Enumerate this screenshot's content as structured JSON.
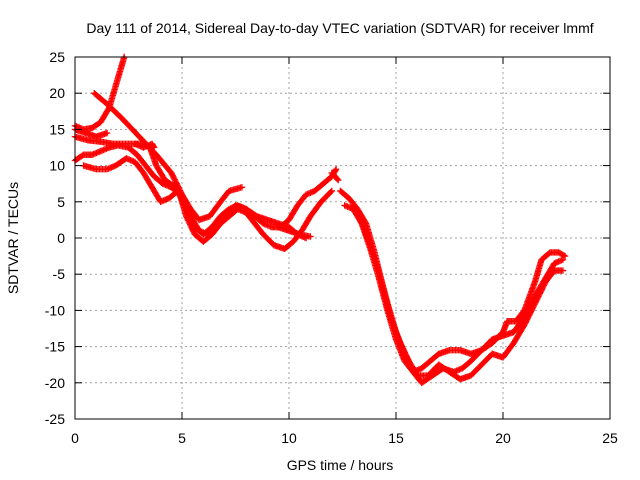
{
  "chart_data": {
    "type": "scatter",
    "title": "Day 111 of 2014, Sidereal Day-to-day VTEC variation (SDTVAR) for receiver lmmf",
    "xlabel": "GPS time / hours",
    "ylabel": "SDTVAR / TECUs",
    "xlim": [
      0,
      25
    ],
    "ylim": [
      -25,
      25
    ],
    "xticks": [
      "0",
      "5",
      "10",
      "15",
      "20",
      "25"
    ],
    "yticks": [
      "-25",
      "-20",
      "-15",
      "-10",
      "-5",
      "0",
      "5",
      "10",
      "15",
      "20",
      "25"
    ],
    "grid": true,
    "legend": "none",
    "marker": "plus",
    "color": "#ff0000",
    "series": [
      {
        "points": [
          [
            0.0,
            15.5
          ],
          [
            0.4,
            15.0
          ],
          [
            0.8,
            15.2
          ],
          [
            1.2,
            16.0
          ],
          [
            1.6,
            18.0
          ],
          [
            2.0,
            22.0
          ],
          [
            2.3,
            25.0
          ]
        ]
      },
      {
        "points": [
          [
            0.9,
            20.0
          ],
          [
            1.5,
            18.5
          ],
          [
            2.2,
            16.5
          ],
          [
            3.0,
            14.0
          ],
          [
            3.8,
            11.5
          ],
          [
            4.5,
            9.0
          ],
          [
            5.0,
            6.0
          ],
          [
            5.4,
            4.0
          ],
          [
            5.8,
            2.5
          ],
          [
            6.3,
            3.0
          ],
          [
            6.8,
            5.0
          ],
          [
            7.2,
            6.5
          ],
          [
            7.8,
            7.0
          ]
        ]
      },
      {
        "points": [
          [
            0.0,
            14.0
          ],
          [
            0.6,
            13.5
          ],
          [
            1.2,
            13.3
          ],
          [
            1.8,
            13.0
          ],
          [
            2.5,
            13.0
          ],
          [
            3.2,
            13.0
          ],
          [
            3.5,
            12.5
          ],
          [
            3.8,
            10.0
          ],
          [
            4.2,
            8.0
          ],
          [
            4.7,
            7.0
          ],
          [
            5.1,
            5.0
          ],
          [
            5.4,
            3.0
          ],
          [
            5.8,
            1.0
          ],
          [
            6.2,
            0.5
          ],
          [
            6.6,
            1.5
          ],
          [
            7.0,
            3.0
          ],
          [
            7.5,
            4.5
          ],
          [
            8.0,
            4.0
          ],
          [
            8.5,
            3.0
          ],
          [
            9.0,
            2.5
          ],
          [
            9.5,
            2.0
          ],
          [
            10.0,
            1.5
          ],
          [
            10.4,
            0.5
          ],
          [
            10.8,
            0.0
          ]
        ]
      },
      {
        "points": [
          [
            0.0,
            10.7
          ],
          [
            0.4,
            11.5
          ],
          [
            0.8,
            11.5
          ],
          [
            1.2,
            12.0
          ],
          [
            1.6,
            12.5
          ],
          [
            2.0,
            12.8
          ],
          [
            2.5,
            12.5
          ],
          [
            2.9,
            11.5
          ],
          [
            3.3,
            10.0
          ],
          [
            3.7,
            8.5
          ],
          [
            4.1,
            7.5
          ],
          [
            4.5,
            7.0
          ],
          [
            4.9,
            6.0
          ],
          [
            5.2,
            3.0
          ],
          [
            5.6,
            0.5
          ],
          [
            6.0,
            -0.5
          ],
          [
            6.4,
            0.5
          ],
          [
            6.8,
            2.0
          ],
          [
            7.2,
            3.0
          ],
          [
            7.6,
            4.0
          ],
          [
            8.0,
            3.5
          ],
          [
            8.4,
            2.0
          ],
          [
            8.8,
            0.5
          ],
          [
            9.3,
            -1.0
          ],
          [
            9.8,
            -1.5
          ],
          [
            10.2,
            -0.5
          ],
          [
            10.6,
            1.0
          ],
          [
            11.0,
            3.0
          ],
          [
            11.5,
            5.0
          ],
          [
            12.0,
            6.5
          ]
        ]
      },
      {
        "points": [
          [
            0.4,
            10.0
          ],
          [
            1.0,
            9.5
          ],
          [
            1.5,
            9.5
          ],
          [
            1.9,
            10.0
          ],
          [
            2.4,
            11.0
          ],
          [
            2.8,
            10.5
          ],
          [
            3.2,
            9.0
          ],
          [
            3.6,
            7.0
          ],
          [
            4.0,
            5.0
          ],
          [
            4.4,
            5.5
          ],
          [
            4.8,
            6.5
          ],
          [
            5.2,
            4.0
          ],
          [
            5.6,
            1.5
          ],
          [
            6.0,
            0.5
          ],
          [
            6.4,
            1.5
          ],
          [
            6.8,
            3.0
          ],
          [
            7.2,
            4.0
          ],
          [
            7.6,
            4.5
          ],
          [
            8.0,
            4.0
          ],
          [
            8.4,
            3.0
          ],
          [
            8.8,
            2.0
          ],
          [
            9.2,
            1.5
          ],
          [
            9.6,
            1.5
          ],
          [
            10.0,
            2.5
          ],
          [
            10.4,
            4.5
          ],
          [
            10.8,
            6.0
          ],
          [
            11.2,
            6.5
          ],
          [
            11.6,
            7.5
          ],
          [
            12.0,
            8.5
          ],
          [
            12.2,
            9.5
          ]
        ]
      },
      {
        "points": [
          [
            12.4,
            6.5
          ],
          [
            12.8,
            5.5
          ],
          [
            13.2,
            4.0
          ],
          [
            13.6,
            2.0
          ],
          [
            14.0,
            -2.0
          ],
          [
            14.4,
            -7.0
          ],
          [
            14.8,
            -11.5
          ],
          [
            15.2,
            -14.5
          ],
          [
            15.6,
            -17.0
          ],
          [
            16.0,
            -19.0
          ],
          [
            16.5,
            -19.0
          ],
          [
            17.0,
            -17.5
          ],
          [
            17.5,
            -18.5
          ],
          [
            18.0,
            -19.5
          ],
          [
            18.5,
            -19.0
          ],
          [
            19.0,
            -17.5
          ],
          [
            19.5,
            -16.0
          ],
          [
            20.0,
            -16.5
          ],
          [
            20.5,
            -14.5
          ],
          [
            21.0,
            -12.0
          ],
          [
            21.5,
            -9.0
          ],
          [
            22.0,
            -6.0
          ],
          [
            22.4,
            -4.5
          ],
          [
            22.8,
            -4.5
          ]
        ]
      },
      {
        "points": [
          [
            12.6,
            4.5
          ],
          [
            13.0,
            4.0
          ],
          [
            13.4,
            2.0
          ],
          [
            13.8,
            -1.0
          ],
          [
            14.2,
            -4.5
          ],
          [
            14.6,
            -9.0
          ],
          [
            15.0,
            -13.0
          ],
          [
            15.4,
            -16.0
          ],
          [
            15.8,
            -18.5
          ],
          [
            16.2,
            -20.0
          ],
          [
            16.7,
            -19.0
          ],
          [
            17.2,
            -18.0
          ],
          [
            17.7,
            -18.5
          ],
          [
            18.1,
            -18.0
          ],
          [
            18.5,
            -17.0
          ],
          [
            19.0,
            -15.5
          ],
          [
            19.5,
            -14.0
          ],
          [
            20.0,
            -13.5
          ],
          [
            20.5,
            -13.0
          ],
          [
            21.0,
            -11.0
          ],
          [
            21.5,
            -8.0
          ],
          [
            22.0,
            -5.5
          ],
          [
            22.4,
            -3.5
          ],
          [
            22.8,
            -3.0
          ]
        ]
      },
      {
        "points": [
          [
            13.0,
            4.5
          ],
          [
            13.4,
            2.0
          ],
          [
            13.8,
            -1.5
          ],
          [
            14.2,
            -5.5
          ],
          [
            14.6,
            -10.0
          ],
          [
            15.0,
            -14.0
          ],
          [
            15.4,
            -17.0
          ],
          [
            15.8,
            -18.5
          ],
          [
            16.2,
            -18.0
          ],
          [
            16.6,
            -17.0
          ],
          [
            17.0,
            -16.0
          ],
          [
            17.5,
            -15.5
          ],
          [
            18.0,
            -15.5
          ],
          [
            18.5,
            -16.0
          ],
          [
            19.0,
            -15.5
          ],
          [
            19.5,
            -14.5
          ],
          [
            20.0,
            -13.0
          ],
          [
            20.2,
            -11.5
          ],
          [
            20.6,
            -11.5
          ],
          [
            21.0,
            -10.0
          ],
          [
            21.5,
            -6.0
          ],
          [
            21.8,
            -3.0
          ],
          [
            22.2,
            -2.0
          ],
          [
            22.6,
            -2.0
          ],
          [
            22.9,
            -2.5
          ]
        ]
      },
      {
        "points": [
          [
            0.0,
            15.0
          ],
          [
            0.5,
            14.5
          ],
          [
            1.0,
            14.0
          ],
          [
            1.5,
            14.5
          ]
        ]
      },
      {
        "points": [
          [
            2.8,
            13.0
          ],
          [
            3.2,
            12.5
          ],
          [
            3.6,
            13.0
          ],
          [
            3.7,
            12.5
          ]
        ]
      },
      {
        "points": [
          [
            9.5,
            1.5
          ],
          [
            10.0,
            1.0
          ],
          [
            10.5,
            0.5
          ],
          [
            11.0,
            0.2
          ]
        ]
      },
      {
        "points": [
          [
            12.0,
            9.0
          ],
          [
            12.3,
            8.0
          ]
        ]
      }
    ]
  }
}
